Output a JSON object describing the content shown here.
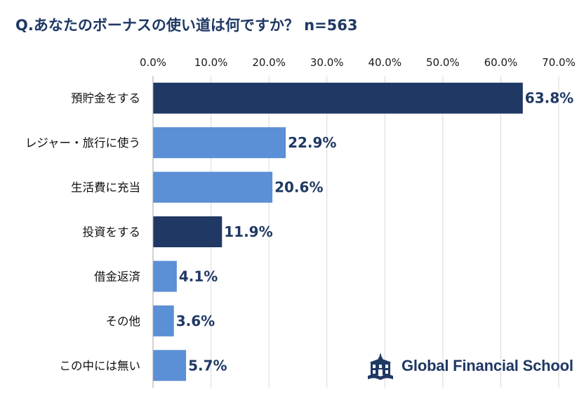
{
  "title": "Q.あなたのボーナスの使い道は何ですか？ n=563",
  "logo": {
    "text": "Global Financial School",
    "icon": "school-building-icon"
  },
  "colors": {
    "dark": "#1f3864",
    "light": "#5b8fd6",
    "text": "#1f3864"
  },
  "chart_data": {
    "type": "bar",
    "orientation": "horizontal",
    "title": "Q.あなたのボーナスの使い道は何ですか？ n=563",
    "categories": [
      "預貯金をする",
      "レジャー・旅行に使う",
      "生活費に充当",
      "投資をする",
      "借金返済",
      "その他",
      "この中には無い"
    ],
    "values": [
      63.8,
      22.9,
      20.6,
      11.9,
      4.1,
      3.6,
      5.7
    ],
    "data_labels": [
      "63.8%",
      "22.9%",
      "20.6%",
      "11.9%",
      "4.1%",
      "3.6%",
      "5.7%"
    ],
    "highlight": [
      true,
      false,
      false,
      true,
      false,
      false,
      false
    ],
    "xlim": [
      0,
      70
    ],
    "ticks": [
      0,
      10,
      20,
      30,
      40,
      50,
      60,
      70
    ],
    "tick_labels": [
      "0.0%",
      "10.0%",
      "20.0%",
      "30.0%",
      "40.0%",
      "50.0%",
      "60.0%",
      "70.0%"
    ],
    "axis_position": "top",
    "grid": true
  }
}
